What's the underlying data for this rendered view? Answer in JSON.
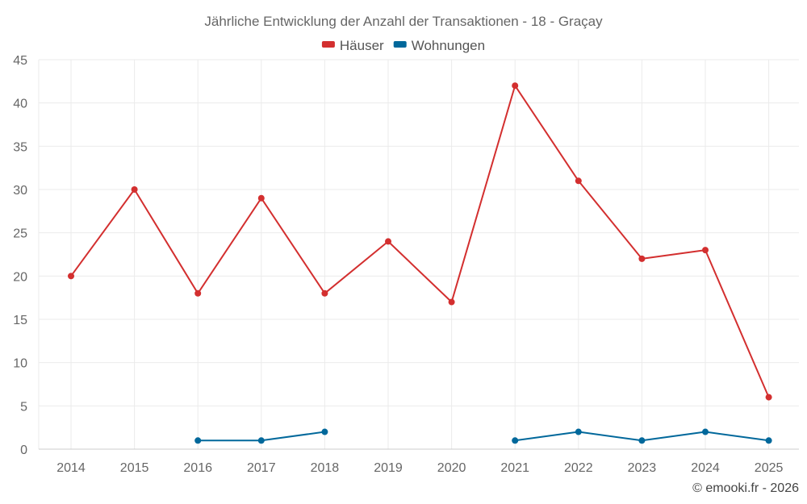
{
  "chart_data": {
    "type": "line",
    "title": "Jährliche Entwicklung der Anzahl der Transaktionen - 18 - Graçay",
    "categories": [
      "2014",
      "2015",
      "2016",
      "2017",
      "2018",
      "2019",
      "2020",
      "2021",
      "2022",
      "2023",
      "2024",
      "2025"
    ],
    "ylim": [
      0,
      45
    ],
    "yticks": [
      0,
      5,
      10,
      15,
      20,
      25,
      30,
      35,
      40,
      45
    ],
    "grid": true,
    "legend_position": "top-center",
    "series": [
      {
        "name": "Häuser",
        "color": "#d32f2f",
        "values": [
          20,
          30,
          18,
          29,
          18,
          24,
          17,
          42,
          31,
          22,
          23,
          6
        ]
      },
      {
        "name": "Wohnungen",
        "color": "#01689b",
        "values": [
          null,
          null,
          1,
          1,
          2,
          null,
          null,
          1,
          2,
          1,
          2,
          1
        ]
      }
    ]
  },
  "footer": {
    "credit": "© emooki.fr - 2026"
  }
}
